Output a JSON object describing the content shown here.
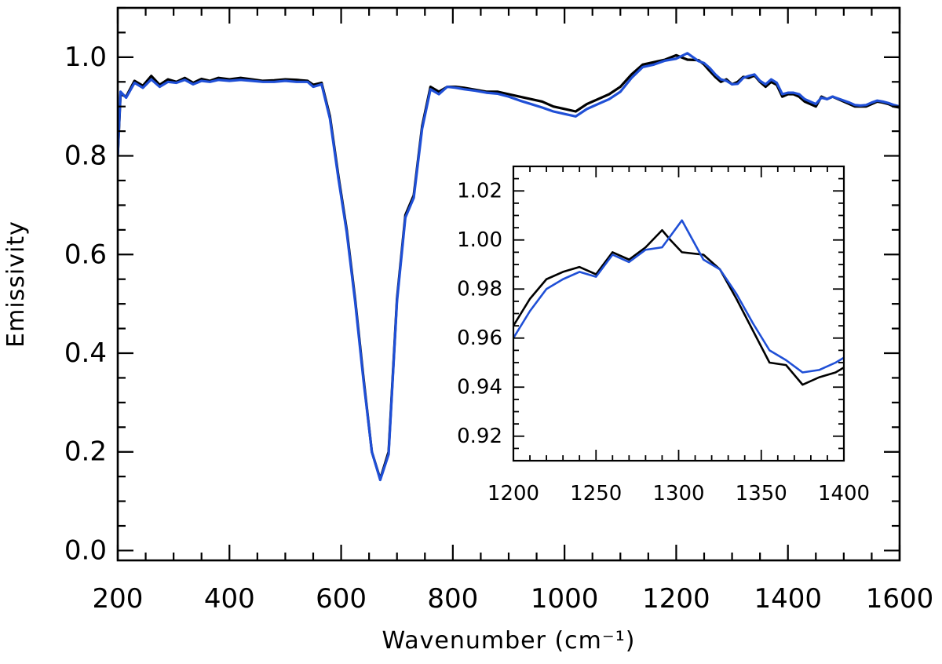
{
  "chart_data": [
    {
      "type": "line",
      "title": "",
      "xlabel": "Wavenumber (cm⁻¹)",
      "ylabel": "Emissivity",
      "xlim": [
        200,
        1600
      ],
      "ylim": [
        -0.02,
        1.1
      ],
      "xticks": [
        200,
        400,
        600,
        800,
        1000,
        1200,
        1400,
        1600
      ],
      "xtick_labels": [
        "200",
        "400",
        "600",
        "800",
        "1000",
        "1200",
        "1400",
        "1600"
      ],
      "yticks": [
        0.0,
        0.2,
        0.4,
        0.6,
        0.8,
        1.0
      ],
      "ytick_labels": [
        "0.0",
        "0.2",
        "0.4",
        "0.6",
        "0.8",
        "1.0"
      ],
      "grid": false,
      "legend": "none",
      "series": [
        {
          "color": "#000000",
          "x": [
            200,
            205,
            215,
            230,
            245,
            260,
            275,
            290,
            305,
            320,
            335,
            350,
            365,
            380,
            400,
            420,
            440,
            460,
            480,
            500,
            520,
            540,
            550,
            565,
            580,
            595,
            610,
            625,
            640,
            655,
            670,
            685,
            700,
            715,
            730,
            745,
            760,
            775,
            790,
            805,
            820,
            840,
            860,
            880,
            900,
            920,
            940,
            960,
            980,
            1000,
            1020,
            1040,
            1060,
            1080,
            1100,
            1120,
            1140,
            1160,
            1180,
            1200,
            1220,
            1240,
            1250,
            1260,
            1270,
            1280,
            1290,
            1300,
            1310,
            1320,
            1330,
            1340,
            1350,
            1360,
            1370,
            1380,
            1390,
            1400,
            1410,
            1420,
            1430,
            1440,
            1450,
            1460,
            1470,
            1480,
            1490,
            1500,
            1510,
            1520,
            1530,
            1540,
            1550,
            1560,
            1570,
            1580,
            1590,
            1600
          ],
          "y": [
            0.8,
            0.925,
            0.92,
            0.952,
            0.942,
            0.962,
            0.944,
            0.955,
            0.95,
            0.958,
            0.948,
            0.956,
            0.952,
            0.958,
            0.955,
            0.958,
            0.955,
            0.952,
            0.953,
            0.955,
            0.954,
            0.952,
            0.944,
            0.948,
            0.88,
            0.76,
            0.65,
            0.51,
            0.35,
            0.2,
            0.145,
            0.2,
            0.51,
            0.68,
            0.72,
            0.86,
            0.94,
            0.93,
            0.94,
            0.94,
            0.938,
            0.934,
            0.93,
            0.93,
            0.925,
            0.92,
            0.915,
            0.91,
            0.9,
            0.895,
            0.89,
            0.905,
            0.915,
            0.925,
            0.94,
            0.965,
            0.985,
            0.99,
            0.995,
            1.004,
            0.995,
            0.994,
            0.985,
            0.972,
            0.96,
            0.95,
            0.955,
            0.945,
            0.95,
            0.96,
            0.958,
            0.963,
            0.95,
            0.94,
            0.95,
            0.944,
            0.92,
            0.925,
            0.925,
            0.92,
            0.91,
            0.905,
            0.9,
            0.92,
            0.915,
            0.92,
            0.915,
            0.91,
            0.905,
            0.9,
            0.9,
            0.9,
            0.905,
            0.91,
            0.908,
            0.905,
            0.9,
            0.898
          ]
        },
        {
          "color": "#1f4fd6",
          "x": [
            200,
            205,
            215,
            230,
            245,
            260,
            275,
            290,
            305,
            320,
            335,
            350,
            365,
            380,
            400,
            420,
            440,
            460,
            480,
            500,
            520,
            540,
            550,
            565,
            580,
            595,
            610,
            625,
            640,
            655,
            670,
            685,
            700,
            715,
            730,
            745,
            760,
            775,
            790,
            805,
            820,
            840,
            860,
            880,
            900,
            920,
            940,
            960,
            980,
            1000,
            1020,
            1040,
            1060,
            1080,
            1100,
            1120,
            1140,
            1160,
            1180,
            1200,
            1220,
            1240,
            1250,
            1260,
            1270,
            1280,
            1290,
            1300,
            1310,
            1320,
            1330,
            1340,
            1350,
            1360,
            1370,
            1380,
            1390,
            1400,
            1410,
            1420,
            1430,
            1440,
            1450,
            1460,
            1470,
            1480,
            1490,
            1500,
            1510,
            1520,
            1530,
            1540,
            1550,
            1560,
            1570,
            1580,
            1590,
            1600
          ],
          "y": [
            0.8,
            0.93,
            0.918,
            0.948,
            0.938,
            0.955,
            0.94,
            0.95,
            0.948,
            0.954,
            0.945,
            0.952,
            0.95,
            0.954,
            0.952,
            0.954,
            0.952,
            0.95,
            0.95,
            0.952,
            0.95,
            0.95,
            0.94,
            0.945,
            0.875,
            0.755,
            0.645,
            0.505,
            0.345,
            0.2,
            0.143,
            0.195,
            0.505,
            0.675,
            0.715,
            0.855,
            0.935,
            0.925,
            0.94,
            0.938,
            0.935,
            0.932,
            0.928,
            0.926,
            0.92,
            0.912,
            0.905,
            0.898,
            0.89,
            0.885,
            0.88,
            0.895,
            0.905,
            0.915,
            0.93,
            0.958,
            0.98,
            0.985,
            0.993,
            0.997,
            1.008,
            0.992,
            0.988,
            0.978,
            0.965,
            0.955,
            0.952,
            0.945,
            0.946,
            0.958,
            0.962,
            0.965,
            0.952,
            0.945,
            0.955,
            0.948,
            0.925,
            0.928,
            0.928,
            0.925,
            0.915,
            0.91,
            0.905,
            0.918,
            0.915,
            0.92,
            0.916,
            0.912,
            0.908,
            0.903,
            0.902,
            0.903,
            0.908,
            0.912,
            0.91,
            0.907,
            0.903,
            0.9
          ]
        }
      ]
    },
    {
      "type": "line",
      "title": "",
      "xlabel": "",
      "ylabel": "",
      "xlim": [
        1200,
        1400
      ],
      "ylim": [
        0.91,
        1.03
      ],
      "xticks": [
        1200,
        1250,
        1300,
        1350,
        1400
      ],
      "xtick_labels": [
        "1200",
        "1250",
        "1300",
        "1350",
        "1400"
      ],
      "yticks": [
        0.92,
        0.94,
        0.96,
        0.98,
        1.0,
        1.02
      ],
      "ytick_labels": [
        "0.92",
        "0.94",
        "0.96",
        "0.98",
        "1.00",
        "1.02"
      ],
      "grid": false,
      "legend": "none",
      "series": [
        {
          "color": "#000000",
          "x": [
            1200,
            1210,
            1220,
            1230,
            1240,
            1250,
            1260,
            1270,
            1280,
            1290,
            1295,
            1302,
            1315,
            1325,
            1335,
            1345,
            1355,
            1365,
            1375,
            1385,
            1395,
            1400
          ],
          "y": [
            0.965,
            0.976,
            0.984,
            0.987,
            0.989,
            0.986,
            0.995,
            0.992,
            0.997,
            1.004,
            1.0,
            0.995,
            0.994,
            0.988,
            0.976,
            0.963,
            0.95,
            0.949,
            0.941,
            0.944,
            0.946,
            0.948
          ]
        },
        {
          "color": "#1f4fd6",
          "x": [
            1200,
            1210,
            1220,
            1230,
            1240,
            1250,
            1260,
            1270,
            1280,
            1290,
            1302,
            1315,
            1325,
            1335,
            1345,
            1355,
            1365,
            1375,
            1385,
            1395,
            1400
          ],
          "y": [
            0.96,
            0.971,
            0.98,
            0.984,
            0.987,
            0.985,
            0.994,
            0.991,
            0.996,
            0.997,
            1.008,
            0.992,
            0.988,
            0.978,
            0.966,
            0.955,
            0.951,
            0.946,
            0.947,
            0.95,
            0.952
          ]
        }
      ]
    }
  ]
}
